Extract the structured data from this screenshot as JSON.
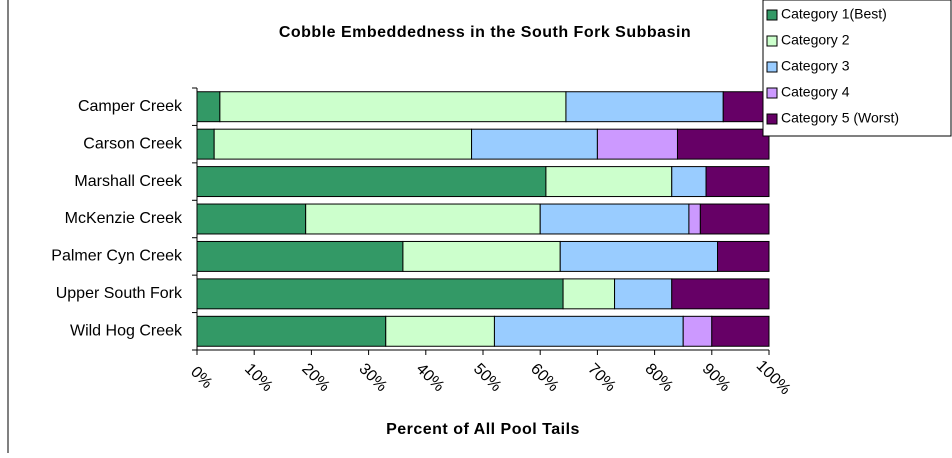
{
  "chart_data": {
    "type": "stacked-barh",
    "title": "Cobble Embeddedness in the South Fork Subbasin",
    "x_label": "Percent of All Pool Tails",
    "categories": [
      "Camper Creek",
      "Carson Creek",
      "Marshall Creek",
      "McKenzie Creek",
      "Palmer Cyn Creek",
      "Upper South Fork",
      "Wild Hog Creek"
    ],
    "series": [
      {
        "name": "Category 1(Best)",
        "color": "#339966",
        "values": [
          4,
          3,
          61,
          19,
          36,
          64,
          33
        ]
      },
      {
        "name": "Category 2",
        "color": "#ccffcc",
        "values": [
          60.5,
          45,
          22,
          41,
          27.5,
          9,
          19
        ]
      },
      {
        "name": "Category 3",
        "color": "#99ccff",
        "values": [
          27.5,
          22,
          6,
          26,
          27.5,
          10,
          33
        ]
      },
      {
        "name": "Category 4",
        "color": "#cc99ff",
        "values": [
          0,
          14,
          0,
          2,
          0,
          0,
          5
        ]
      },
      {
        "name": "Category 5 (Worst)",
        "color": "#660066",
        "values": [
          8,
          16,
          11,
          12,
          9,
          17,
          10
        ]
      }
    ],
    "xlim": [
      0,
      100
    ],
    "xticks": [
      {
        "value": 0,
        "label": "0%"
      },
      {
        "value": 10,
        "label": "10%"
      },
      {
        "value": 20,
        "label": "20%"
      },
      {
        "value": 30,
        "label": "30%"
      },
      {
        "value": 40,
        "label": "40%"
      },
      {
        "value": 50,
        "label": "50%"
      },
      {
        "value": 60,
        "label": "60%"
      },
      {
        "value": 70,
        "label": "70%"
      },
      {
        "value": 80,
        "label": "80%"
      },
      {
        "value": 90,
        "label": "90%"
      },
      {
        "value": 100,
        "label": "100%"
      }
    ],
    "legend": "top-right"
  }
}
